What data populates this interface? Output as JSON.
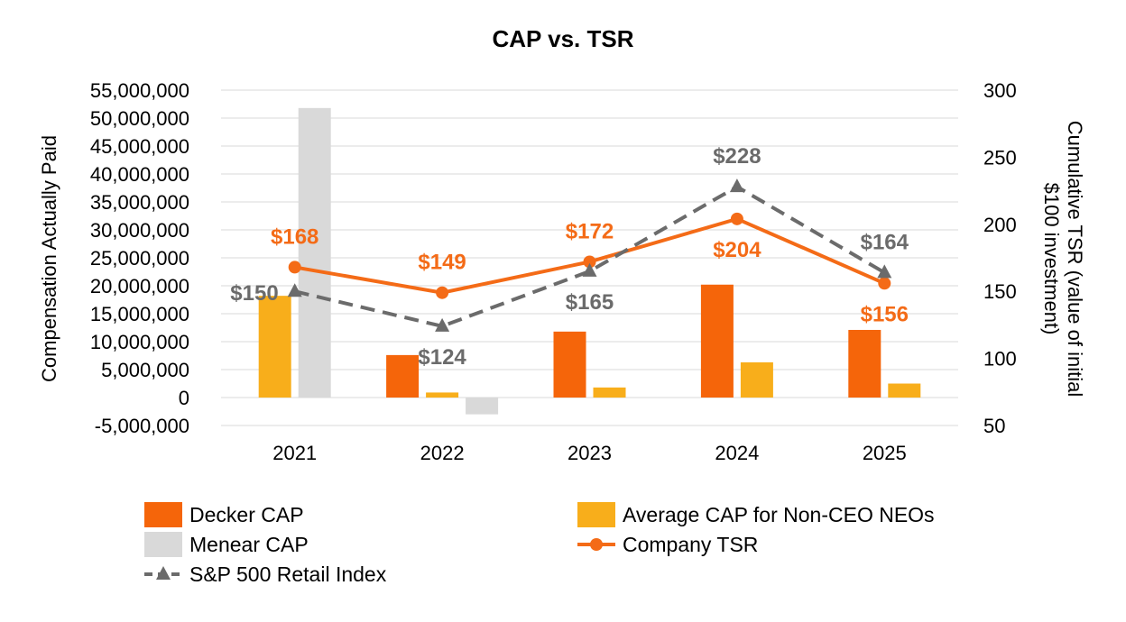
{
  "chart_data": {
    "type": "bar",
    "title": "CAP vs. TSR",
    "categories": [
      "2021",
      "2022",
      "2023",
      "2024",
      "2025"
    ],
    "ylabel": "Compensation Actually Paid",
    "y2label_lines": [
      "Cumulative TSR (value of initial",
      "$100 investment)"
    ],
    "ylim": [
      -5000000,
      55000000
    ],
    "yticks": [
      -5000000,
      0,
      5000000,
      10000000,
      15000000,
      20000000,
      25000000,
      30000000,
      35000000,
      40000000,
      45000000,
      50000000,
      55000000
    ],
    "ytick_labels": [
      "-5,000,000",
      "0",
      "5,000,000",
      "10,000,000",
      "15,000,000",
      "20,000,000",
      "25,000,000",
      "30,000,000",
      "35,000,000",
      "40,000,000",
      "45,000,000",
      "50,000,000",
      "55,000,000"
    ],
    "y2lim": [
      50,
      300
    ],
    "y2ticks": [
      50,
      100,
      150,
      200,
      250,
      300
    ],
    "y2tick_labels": [
      "50",
      "100",
      "150",
      "200",
      "250",
      "300"
    ],
    "grid": true,
    "legend_position": "bottom",
    "bar_series": [
      {
        "name": "Decker CAP",
        "color": "#f5650a",
        "values": [
          null,
          7600000,
          11800000,
          20200000,
          12100000
        ]
      },
      {
        "name": "Average CAP for Non-CEO NEOs",
        "color": "#f8ae1b",
        "values": [
          18200000,
          900000,
          1800000,
          6300000,
          2500000
        ]
      },
      {
        "name": "Menear CAP",
        "color": "#d9d9d9",
        "values": [
          51800000,
          -3000000,
          null,
          null,
          null
        ]
      }
    ],
    "line_series": [
      {
        "name": "Company TSR",
        "color": "#f46b17",
        "style": "solid-circle",
        "values": [
          168,
          149,
          172,
          204,
          156
        ],
        "labels": [
          "$168",
          "$149",
          "$172",
          "$204",
          "$156"
        ],
        "label_positions": [
          "above",
          "above",
          "above",
          "below",
          "below"
        ]
      },
      {
        "name": "S&P 500 Retail Index",
        "color": "#6b6b6b",
        "style": "dashed-triangle",
        "values": [
          150,
          124,
          165,
          228,
          164
        ],
        "labels": [
          "$150",
          "$124",
          "$165",
          "$228",
          "$164"
        ],
        "label_positions": [
          "left",
          "below",
          "below",
          "above",
          "above"
        ]
      }
    ],
    "legend": [
      {
        "name": "Decker CAP",
        "kind": "bar",
        "color": "#f5650a"
      },
      {
        "name": "Average CAP for Non-CEO NEOs",
        "kind": "bar",
        "color": "#f8ae1b"
      },
      {
        "name": "Menear CAP",
        "kind": "bar",
        "color": "#d9d9d9"
      },
      {
        "name": "Company TSR",
        "kind": "line-circle",
        "color": "#f46b17"
      },
      {
        "name": "S&P 500 Retail Index",
        "kind": "line-triangle",
        "color": "#6b6b6b"
      }
    ]
  }
}
